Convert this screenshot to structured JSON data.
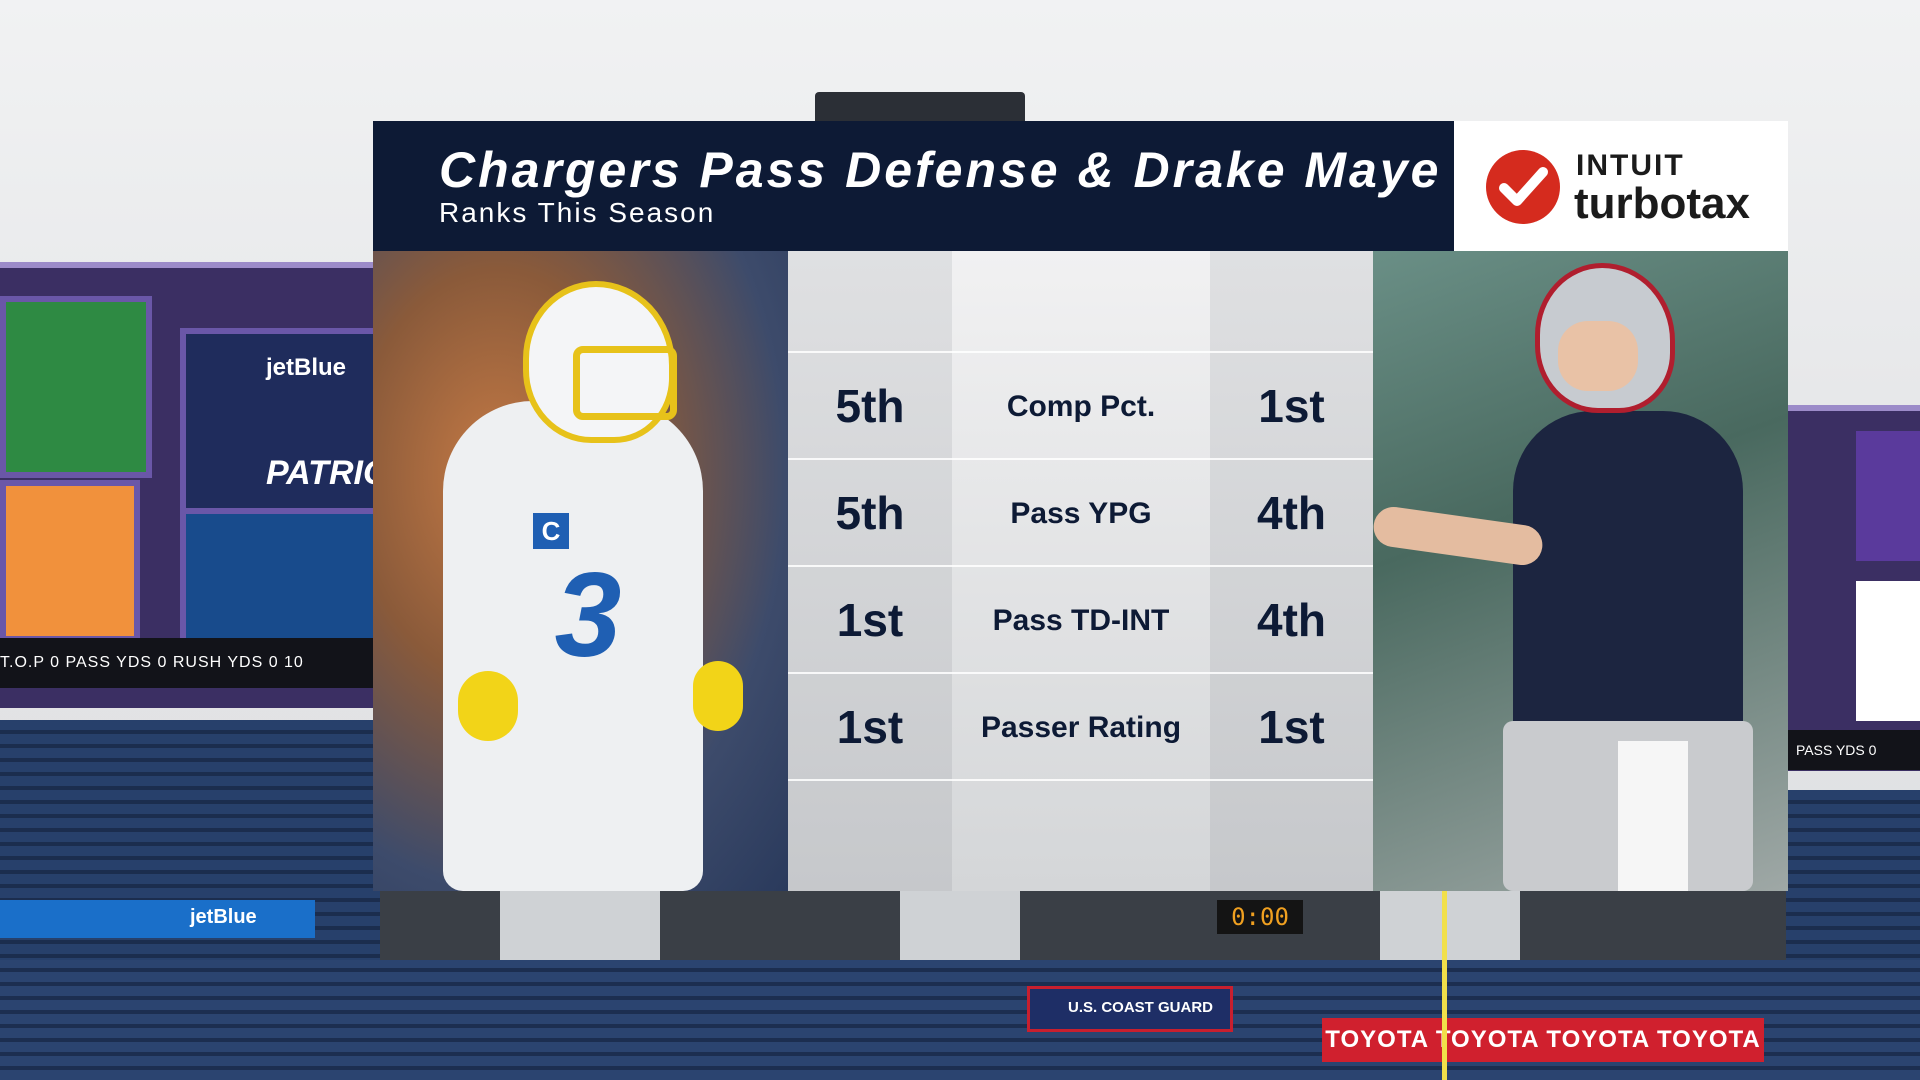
{
  "graphic": {
    "title": "Chargers Pass Defense & Drake Maye",
    "subtitle": "Ranks This Season",
    "sponsor": {
      "line1": "INTUIT",
      "line2": "turbotax",
      "logo_icon": "check-mark-icon",
      "logo_color": "#d52b1e"
    },
    "colors": {
      "header_bg": "#0d1a35",
      "text_dark": "#0d1a35"
    },
    "rows": [
      {
        "left": "5th",
        "label": "Comp Pct.",
        "right": "1st"
      },
      {
        "left": "5th",
        "label": "Pass YPG",
        "right": "4th"
      },
      {
        "left": "1st",
        "label": "Pass TD-INT",
        "right": "4th"
      },
      {
        "left": "1st",
        "label": "Passer Rating",
        "right": "1st"
      }
    ],
    "left_player": {
      "jersey_number": "3",
      "captain_patch": "C"
    }
  },
  "background": {
    "left_board": {
      "brand": "jetBlue",
      "team": "PATRIO",
      "ticker": "T.O.P   0  PASS YDS   0  RUSH YDS   0  10"
    },
    "right_board": {
      "ticker": "PASS YDS  0"
    },
    "jetblue_strip": "jetBlue",
    "coast_guard": "U.S. COAST GUARD",
    "toyota_bar": "TOYOTA TOYOTA TOYOTA TOYOTA",
    "clock": "0:00"
  }
}
